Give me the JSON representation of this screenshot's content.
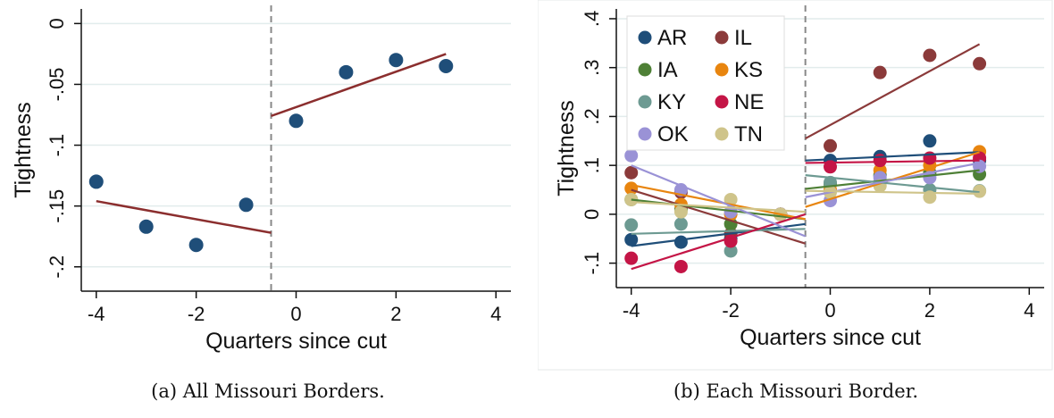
{
  "captions": {
    "a": "(a) All Missouri Borders.",
    "b": "(b) Each Missouri Border."
  },
  "chart_data": [
    {
      "type": "scatter",
      "title": "",
      "xlabel": "Quarters since cut",
      "ylabel": "Tightness",
      "xlim": [
        -4.3,
        4.3
      ],
      "ylim": [
        -0.22,
        0.012
      ],
      "xticks": [
        -4,
        -2,
        0,
        2,
        4
      ],
      "xtick_labels": [
        "-4",
        "-2",
        "0",
        "2",
        "4"
      ],
      "yticks": [
        0,
        -0.05,
        -0.1,
        -0.15,
        -0.2
      ],
      "ytick_labels": [
        "0",
        "-.05",
        "-.1",
        "-.15",
        "-.2"
      ],
      "cutoff": -0.5,
      "grid": true,
      "legend": "none",
      "point_color": "#1f4e79",
      "line_color": "#8b2e2e",
      "series": [
        {
          "x": [
            -4,
            -3,
            -2,
            -1,
            0,
            1,
            2,
            3
          ],
          "y": [
            -0.13,
            -0.167,
            -0.182,
            -0.149,
            -0.08,
            -0.04,
            -0.03,
            -0.035
          ]
        }
      ],
      "fit_lines": [
        {
          "x": [
            -4,
            -0.5
          ],
          "y": [
            -0.146,
            -0.172
          ]
        },
        {
          "x": [
            -0.5,
            3
          ],
          "y": [
            -0.076,
            -0.025
          ]
        }
      ]
    },
    {
      "type": "scatter",
      "title": "",
      "xlabel": "Quarters since cut",
      "ylabel": "Tightness",
      "xlim": [
        -4.3,
        4.3
      ],
      "ylim": [
        -0.15,
        0.42
      ],
      "xticks": [
        -4,
        -2,
        0,
        2,
        4
      ],
      "xtick_labels": [
        "-4",
        "-2",
        "0",
        "2",
        "4"
      ],
      "yticks": [
        -0.1,
        0,
        0.1,
        0.2,
        0.3,
        0.4
      ],
      "ytick_labels": [
        "-.1",
        "0",
        ".1",
        ".2",
        ".3",
        ".4"
      ],
      "cutoff": -0.5,
      "grid": true,
      "legend": "top-left",
      "series": [
        {
          "name": "AR",
          "color": "#1f4e79",
          "x": [
            -4,
            -3,
            -2,
            -1,
            0,
            1,
            2,
            3
          ],
          "y": [
            -0.052,
            -0.057,
            -0.05,
            0,
            0.11,
            0.118,
            0.15,
            0.11
          ],
          "fit": [
            [
              -4,
              -0.065
            ],
            [
              -0.5,
              -0.02
            ],
            [
              -0.5,
              0.11
            ],
            [
              3,
              0.127
            ]
          ]
        },
        {
          "name": "IL",
          "color": "#8b3a3a",
          "x": [
            -4,
            -3,
            -2,
            -1,
            0,
            1,
            2,
            3
          ],
          "y": [
            0.085,
            0.045,
            -0.04,
            0,
            0.14,
            0.29,
            0.325,
            0.308
          ],
          "fit": [
            [
              -4,
              0.05
            ],
            [
              -0.5,
              -0.06
            ],
            [
              -0.5,
              0.155
            ],
            [
              3,
              0.348
            ]
          ]
        },
        {
          "name": "IA",
          "color": "#4e8036",
          "x": [
            -4,
            -3,
            -2,
            -1,
            0,
            1,
            2,
            3
          ],
          "y": [
            0.03,
            0.01,
            -0.02,
            0,
            0.062,
            0.08,
            0.085,
            0.082
          ],
          "fit": [
            [
              -4,
              0.03
            ],
            [
              -0.5,
              -0.01
            ],
            [
              -0.5,
              0.052
            ],
            [
              3,
              0.09
            ]
          ]
        },
        {
          "name": "KS",
          "color": "#e8850f",
          "x": [
            -4,
            -3,
            -2,
            -1,
            0,
            1,
            2,
            3
          ],
          "y": [
            0.053,
            0.02,
            0,
            0,
            0.05,
            0.09,
            0.1,
            0.128
          ],
          "fit": [
            [
              -4,
              0.06
            ],
            [
              -0.5,
              -0.01
            ],
            [
              -0.5,
              0.015
            ],
            [
              3,
              0.127
            ]
          ]
        },
        {
          "name": "KY",
          "color": "#6d9a92",
          "x": [
            -4,
            -3,
            -2,
            -1,
            0,
            1,
            2,
            3
          ],
          "y": [
            -0.022,
            -0.02,
            -0.075,
            0,
            0.065,
            0.065,
            0.05,
            0.048
          ],
          "fit": [
            [
              -4,
              -0.04
            ],
            [
              -0.5,
              -0.03
            ],
            [
              -0.5,
              0.08
            ],
            [
              3,
              0.045
            ]
          ]
        },
        {
          "name": "NE",
          "color": "#c41546",
          "x": [
            -4,
            -3,
            -2,
            -1,
            0,
            1,
            2,
            3
          ],
          "y": [
            -0.09,
            -0.107,
            -0.055,
            0,
            0.097,
            0.11,
            0.115,
            0.115
          ],
          "fit": [
            [
              -4,
              -0.112
            ],
            [
              -0.5,
              0.0
            ],
            [
              -0.5,
              0.105
            ],
            [
              3,
              0.11
            ]
          ]
        },
        {
          "name": "OK",
          "color": "#9a92d6",
          "x": [
            -4,
            -3,
            -2,
            -1,
            0,
            1,
            2,
            3
          ],
          "y": [
            0.12,
            0.05,
            0.005,
            0,
            0.028,
            0.075,
            0.075,
            0.098
          ],
          "fit": [
            [
              -4,
              0.1
            ],
            [
              -0.5,
              -0.045
            ],
            [
              -0.5,
              0.035
            ],
            [
              3,
              0.105
            ]
          ]
        },
        {
          "name": "TN",
          "color": "#cfc48a",
          "x": [
            -4,
            -3,
            -2,
            -1,
            0,
            1,
            2,
            3
          ],
          "y": [
            0.03,
            0.005,
            0.03,
            0,
            0.045,
            0.058,
            0.035,
            0.047
          ],
          "fit": [
            [
              -4,
              0.025
            ],
            [
              -0.5,
              0.005
            ],
            [
              -0.5,
              0.048
            ],
            [
              3,
              0.042
            ]
          ]
        }
      ]
    }
  ]
}
